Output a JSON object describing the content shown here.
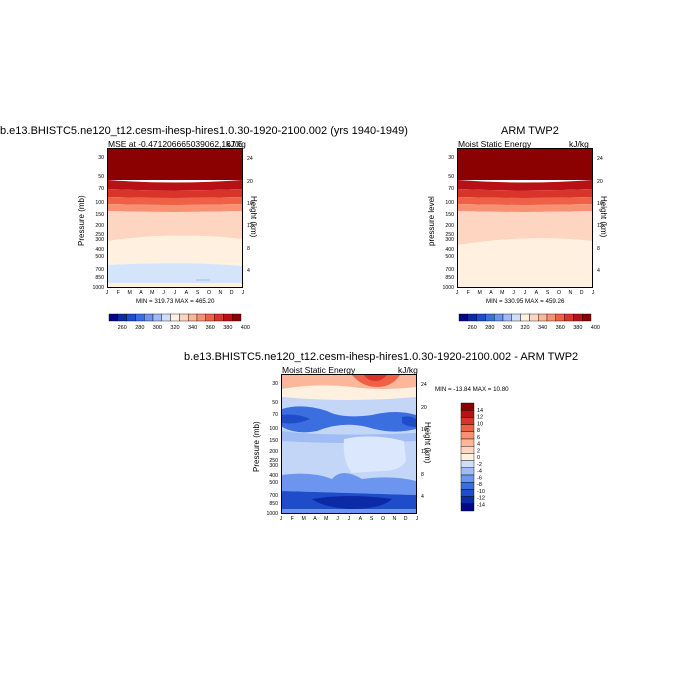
{
  "colors": {
    "mse": [
      "#00078a",
      "#0b2aa6",
      "#1f4cc9",
      "#3b6fe0",
      "#6b95ef",
      "#9fbcf5",
      "#cfdffb",
      "#fff0e0",
      "#fdd5c0",
      "#fcb79b",
      "#f89174",
      "#ef6046",
      "#d9342a",
      "#b71116",
      "#8b0000"
    ],
    "diff": [
      "#00078a",
      "#0b2aa6",
      "#1f4cc9",
      "#3b6fe0",
      "#6b95ef",
      "#9fbcf5",
      "#cfdffb",
      "#fff0e0",
      "#fdd5c0",
      "#fcb79b",
      "#f89174",
      "#ef6046",
      "#d9342a",
      "#b71116",
      "#8b0000"
    ]
  },
  "p1": {
    "title": "b.e13.BHISTC5.ne120_t12.cesm-ihesp-hires1.0.30-1920-2100.002 (yrs 1940-1949)",
    "left_label": "MSE at -0.471206665039062,167.5",
    "right_label": "kJ/kg",
    "minmax": "MIN = 319.73 MAX = 465.20",
    "ylabel": "Pressure (mb)",
    "ylabel2": "Height (km)"
  },
  "p2": {
    "title": "ARM TWP2",
    "left_label": "Moist Static Energy",
    "right_label": "kJ/kg",
    "minmax": "MIN = 330.95 MAX = 459.26",
    "ylabel": "pressure level",
    "ylabel2": "Height (km)"
  },
  "p3": {
    "title": "b.e13.BHISTC5.ne120_t12.cesm-ihesp-hires1.0.30-1920-2100.002 - ARM TWP2",
    "left_label": "Moist Static Energy",
    "right_label": "kJ/kg",
    "minmax": "MIN = -13.84 MAX =  10.80",
    "ylabel": "Pressure (mb)",
    "ylabel2": "Height (km)"
  },
  "chart_data": [
    {
      "type": "heatmap",
      "title": "b.e13.BHISTC5.ne120_t12.cesm-ihesp-hires1.0.30-1920-2100.002 (yrs 1940-1949)",
      "x": [
        "J",
        "F",
        "M",
        "A",
        "M",
        "J",
        "J",
        "A",
        "S",
        "O",
        "N",
        "D",
        "J"
      ],
      "y_pressure": [
        "30",
        "50",
        "70",
        "100",
        "150",
        "200",
        "250",
        "300",
        "400",
        "500",
        "700",
        "850",
        "1000"
      ],
      "y_height": [
        "24",
        "20",
        "16",
        "12",
        "8",
        "4"
      ],
      "levels": [
        260,
        280,
        300,
        320,
        340,
        360,
        380,
        400
      ],
      "min": 319.73,
      "max": 465.2,
      "units": "kJ/kg",
      "bands": [
        {
          "from": "1000",
          "to": "500",
          "value": 330
        },
        {
          "from": "500",
          "to": "250",
          "value": 342
        },
        {
          "from": "250",
          "to": "150",
          "value": 355
        },
        {
          "from": "150",
          "to": "100",
          "value": 372
        },
        {
          "from": "100",
          "to": "70",
          "value": 392
        },
        {
          "from": "70",
          "to": "30",
          "value": 420
        }
      ]
    },
    {
      "type": "heatmap",
      "title": "ARM TWP2",
      "x": [
        "J",
        "F",
        "M",
        "A",
        "M",
        "J",
        "J",
        "A",
        "S",
        "O",
        "N",
        "D",
        "J"
      ],
      "y_pressure": [
        "30",
        "50",
        "70",
        "100",
        "150",
        "200",
        "250",
        "300",
        "400",
        "500",
        "700",
        "850",
        "1000"
      ],
      "y_height": [
        "24",
        "20",
        "16",
        "12",
        "8",
        "4"
      ],
      "levels": [
        260,
        280,
        300,
        320,
        340,
        360,
        380,
        400
      ],
      "min": 330.95,
      "max": 459.26,
      "units": "kJ/kg",
      "bands": [
        {
          "from": "1000",
          "to": "300",
          "value": 342
        },
        {
          "from": "300",
          "to": "150",
          "value": 355
        },
        {
          "from": "150",
          "to": "100",
          "value": 372
        },
        {
          "from": "100",
          "to": "70",
          "value": 392
        },
        {
          "from": "70",
          "to": "30",
          "value": 420
        }
      ]
    },
    {
      "type": "heatmap",
      "title": "b.e13.BHISTC5.ne120_t12.cesm-ihesp-hires1.0.30-1920-2100.002 - ARM TWP2",
      "x": [
        "J",
        "F",
        "M",
        "A",
        "M",
        "J",
        "J",
        "A",
        "S",
        "O",
        "N",
        "D",
        "J"
      ],
      "y_pressure": [
        "30",
        "50",
        "70",
        "100",
        "150",
        "200",
        "250",
        "300",
        "400",
        "500",
        "700",
        "850",
        "1000"
      ],
      "y_height": [
        "24",
        "20",
        "16",
        "12",
        "8",
        "4"
      ],
      "levels": [
        -14,
        -12,
        -10,
        -8,
        -6,
        -4,
        -2,
        0,
        2,
        4,
        6,
        8,
        10,
        12,
        14
      ],
      "min": -13.84,
      "max": 10.8,
      "units": "kJ/kg"
    }
  ]
}
